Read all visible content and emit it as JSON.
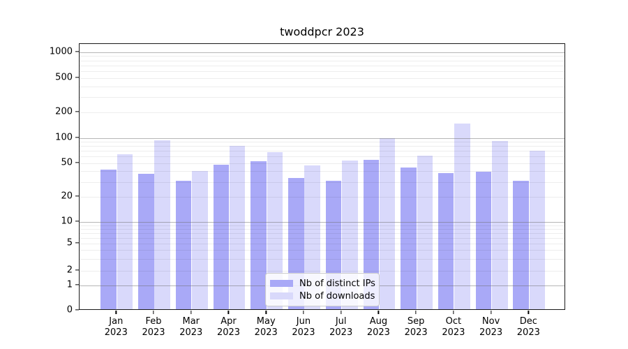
{
  "title": "twoddpcr 2023",
  "colors": {
    "distinct_ips": "#a9a9f7",
    "downloads": "#d9d9fb",
    "grid_major": "rgba(110,110,110,0.5)",
    "grid_minor": "rgba(0,0,0,0.07)",
    "spine": "#1a1a1a"
  },
  "legend": {
    "items": [
      {
        "label": "Nb of distinct IPs",
        "color": "#a9a9f7"
      },
      {
        "label": "Nb of downloads",
        "color": "#d9d9fb"
      }
    ]
  },
  "chart_data": {
    "type": "bar",
    "title": "twoddpcr 2023",
    "xlabel": "",
    "ylabel": "",
    "yscale": "log-like (symlog, 0 at baseline)",
    "grid": true,
    "legend_position": "lower center inside plot",
    "categories": [
      "Jan 2023",
      "Feb 2023",
      "Mar 2023",
      "Apr 2023",
      "May 2023",
      "Jun 2023",
      "Jul 2023",
      "Aug 2023",
      "Sep 2023",
      "Oct 2023",
      "Nov 2023",
      "Dec 2023"
    ],
    "series": [
      {
        "name": "Nb of distinct IPs",
        "color": "#a9a9f7",
        "values": [
          40,
          36,
          30,
          46,
          51,
          32,
          30,
          53,
          43,
          37,
          38,
          30
        ]
      },
      {
        "name": "Nb of downloads",
        "color": "#d9d9fb",
        "values": [
          62,
          90,
          39,
          78,
          65,
          45,
          52,
          95,
          59,
          142,
          89,
          68
        ]
      }
    ],
    "y_ticks": [
      0,
      1,
      2,
      5,
      10,
      20,
      50,
      100,
      200,
      500,
      1000
    ],
    "ylim": [
      0,
      1300
    ]
  }
}
